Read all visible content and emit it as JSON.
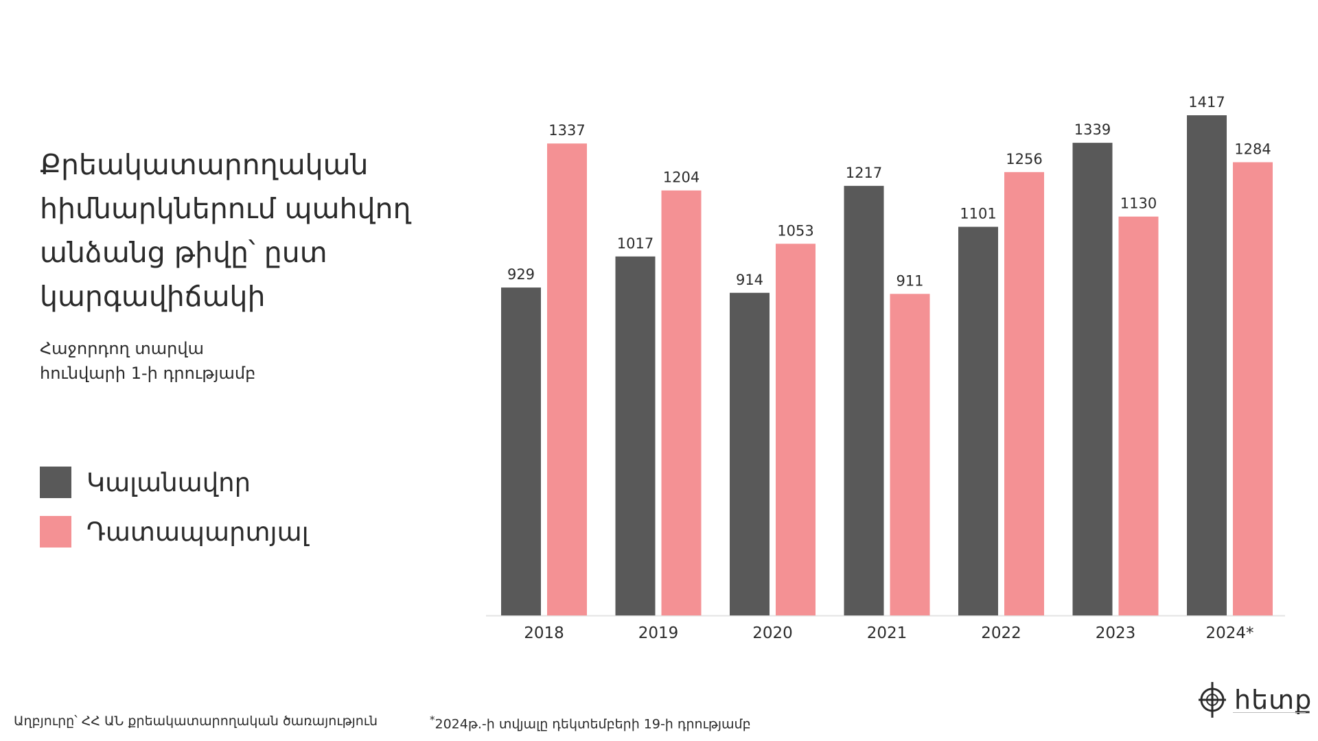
{
  "title": "Քրեակատարողական հիմնարկներում պահվող անձանց թիվը՝ ըստ կարգավիճակի",
  "subtitle_line1": "Հաջորդող տարվա",
  "subtitle_line2": "հունվարի 1-ի դրությամբ",
  "source": "Աղբյուրը՝ ՀՀ ԱՆ քրեակատարողական ծառայություն",
  "note_mark": "*",
  "note": "2024թ.-ի տվյալը դեկտեմբերի 19-ի դրությամբ",
  "logo_text": "հետք",
  "colors": {
    "detained": "#595959",
    "arrested": "#f49194",
    "axis": "#e3e3e3",
    "text": "#2a2a2a"
  },
  "chart_data": {
    "type": "bar",
    "categories": [
      "2018",
      "2019",
      "2020",
      "2021",
      "2022",
      "2023",
      "2024*"
    ],
    "series": [
      {
        "name": "Կալանավոր",
        "values": [
          929,
          1017,
          914,
          1217,
          1101,
          1339,
          1417
        ]
      },
      {
        "name": "Դատապարտյալ",
        "values": [
          1337,
          1204,
          1053,
          911,
          1256,
          1130,
          1284
        ]
      }
    ],
    "ylim": [
      0,
      1417
    ],
    "grid": false,
    "legend": "left"
  }
}
